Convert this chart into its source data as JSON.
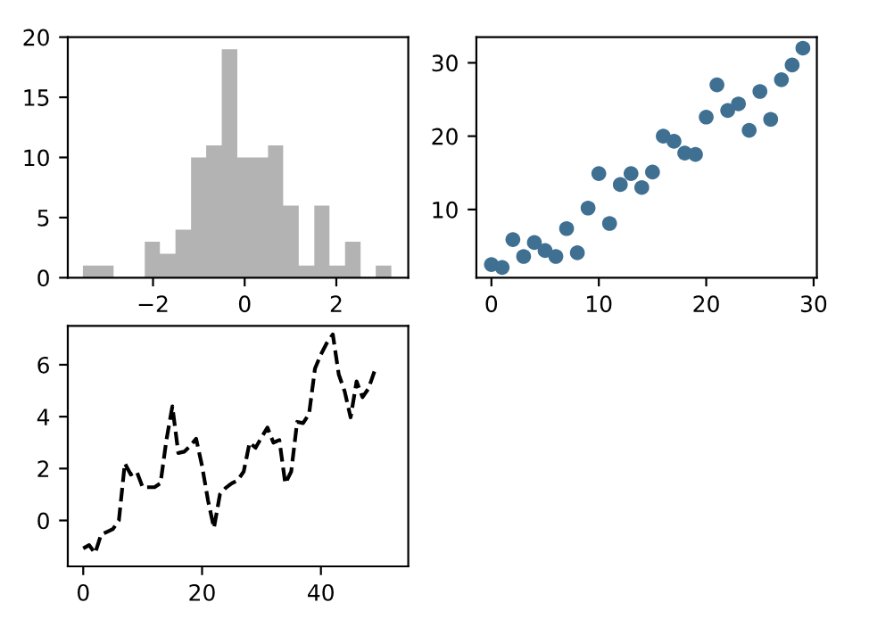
{
  "chart_data": [
    {
      "type": "histogram",
      "bins": [
        -3.53,
        -3.19,
        -2.86,
        -2.52,
        -2.18,
        -1.85,
        -1.51,
        -1.17,
        -0.84,
        -0.5,
        -0.16,
        0.17,
        0.51,
        0.84,
        1.18,
        1.52,
        1.85,
        2.19,
        2.53,
        2.86,
        3.2
      ],
      "values": [
        1,
        1,
        0,
        0,
        3,
        2,
        4,
        10,
        11,
        19,
        10,
        10,
        11,
        6,
        1,
        6,
        1,
        3,
        0,
        1
      ],
      "color": "#b3b3b3",
      "xlim": [
        -3.86,
        3.57
      ],
      "xticks": [
        {
          "value": -2,
          "label": "−2"
        },
        0,
        2
      ],
      "ylim": [
        0,
        20
      ],
      "yticks": [
        0,
        5,
        10,
        15,
        20
      ]
    },
    {
      "type": "scatter",
      "x": [
        0,
        1,
        2,
        3,
        4,
        5,
        6,
        7,
        8,
        9,
        10,
        11,
        12,
        13,
        14,
        15,
        16,
        17,
        18,
        19,
        20,
        21,
        22,
        23,
        24,
        25,
        26,
        27,
        28,
        29
      ],
      "values": [
        2.5,
        2.1,
        5.9,
        3.6,
        5.5,
        4.4,
        3.6,
        7.4,
        4.1,
        10.2,
        14.9,
        8.1,
        13.4,
        14.9,
        13.0,
        15.1,
        20.0,
        19.3,
        17.7,
        17.5,
        22.6,
        27.0,
        23.5,
        24.4,
        20.8,
        26.1,
        22.3,
        27.7,
        29.7,
        32.0
      ],
      "color": "#3f7092",
      "marker": "circle",
      "xlim": [
        -1.4,
        30.3
      ],
      "xticks": [
        0,
        10,
        20,
        30
      ],
      "ylim": [
        0.7,
        33.5
      ],
      "yticks": [
        10,
        20,
        30
      ]
    },
    {
      "type": "line",
      "x": [
        0,
        1,
        2,
        3,
        4,
        5,
        6,
        7,
        8,
        9,
        10,
        11,
        12,
        13,
        14,
        15,
        16,
        17,
        18,
        19,
        20,
        21,
        22,
        23,
        24,
        25,
        26,
        27,
        28,
        29,
        30,
        31,
        32,
        33,
        34,
        35,
        36,
        37,
        38,
        39,
        40,
        41,
        42,
        43,
        44,
        45,
        46,
        47,
        48,
        49
      ],
      "values": [
        -1.08,
        -0.95,
        -1.26,
        -0.55,
        -0.44,
        -0.33,
        0.0,
        2.2,
        1.77,
        1.88,
        1.28,
        1.28,
        1.28,
        1.43,
        3.1,
        4.4,
        2.6,
        2.65,
        2.87,
        3.15,
        2.1,
        0.77,
        -0.29,
        1.0,
        1.26,
        1.43,
        1.55,
        1.88,
        3.0,
        2.8,
        3.2,
        3.58,
        3.0,
        3.1,
        1.43,
        1.88,
        3.8,
        3.75,
        4.1,
        5.85,
        6.4,
        6.84,
        7.17,
        5.63,
        4.97,
        3.97,
        5.36,
        4.75,
        5.08,
        5.74
      ],
      "color": "#000000",
      "line_style": "dashed",
      "marker": "none",
      "xlim": [
        -2.6,
        54.7
      ],
      "xticks": [
        0,
        20,
        40
      ],
      "ylim": [
        -1.77,
        7.5
      ],
      "yticks": [
        0,
        2,
        4,
        6
      ]
    }
  ]
}
